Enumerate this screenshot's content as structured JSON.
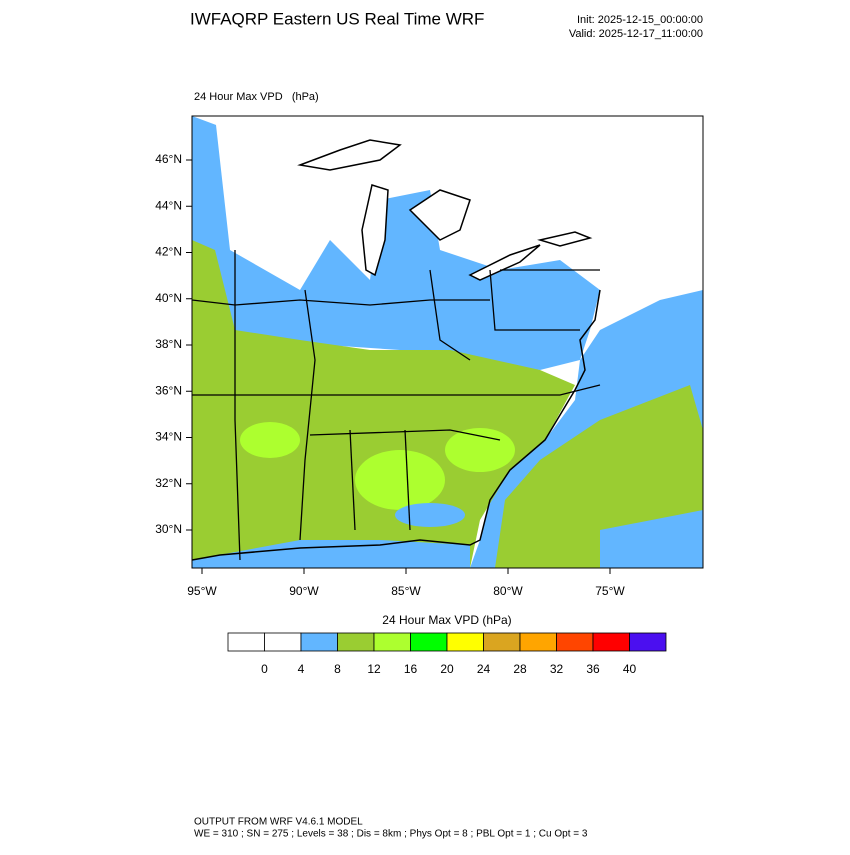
{
  "header": {
    "title": "IWFAQRP Eastern US Real Time WRF",
    "init": "Init: 2025-12-15_00:00:00",
    "valid": "Valid: 2025-12-17_11:00:00"
  },
  "map": {
    "label": "24 Hour Max VPD   (hPa)",
    "lat_ticks": [
      {
        "value": 46,
        "label": "46°N"
      },
      {
        "value": 44,
        "label": "44°N"
      },
      {
        "value": 42,
        "label": "42°N"
      },
      {
        "value": 40,
        "label": "40°N"
      },
      {
        "value": 38,
        "label": "38°N"
      },
      {
        "value": 36,
        "label": "36°N"
      },
      {
        "value": 34,
        "label": "34°N"
      },
      {
        "value": 32,
        "label": "32°N"
      },
      {
        "value": 30,
        "label": "30°N"
      }
    ],
    "lon_ticks": [
      {
        "value": -95,
        "label": "95°W"
      },
      {
        "value": -90,
        "label": "90°W"
      },
      {
        "value": -85,
        "label": "85°W"
      },
      {
        "value": -80,
        "label": "80°W"
      },
      {
        "value": -75,
        "label": "75°W"
      }
    ]
  },
  "colorbar": {
    "title": "24 Hour Max VPD  (hPa)",
    "colors": [
      "#ffffff",
      "#ffffff",
      "#62b6ff",
      "#9acd32",
      "#adff2f",
      "#00ff00",
      "#ffff00",
      "#daa520",
      "#ffa500",
      "#ff4500",
      "#ff0000",
      "#4b0ff0"
    ],
    "labels": [
      0,
      4,
      8,
      12,
      16,
      20,
      24,
      28,
      32,
      36,
      40
    ]
  },
  "footer": {
    "line1": "OUTPUT FROM WRF V4.6.1 MODEL",
    "line2": "WE = 310 ; SN = 275 ; Levels = 38 ; Dis = 8km ; Phys Opt = 8 ; PBL Opt = 1 ; Cu Opt = 3"
  }
}
